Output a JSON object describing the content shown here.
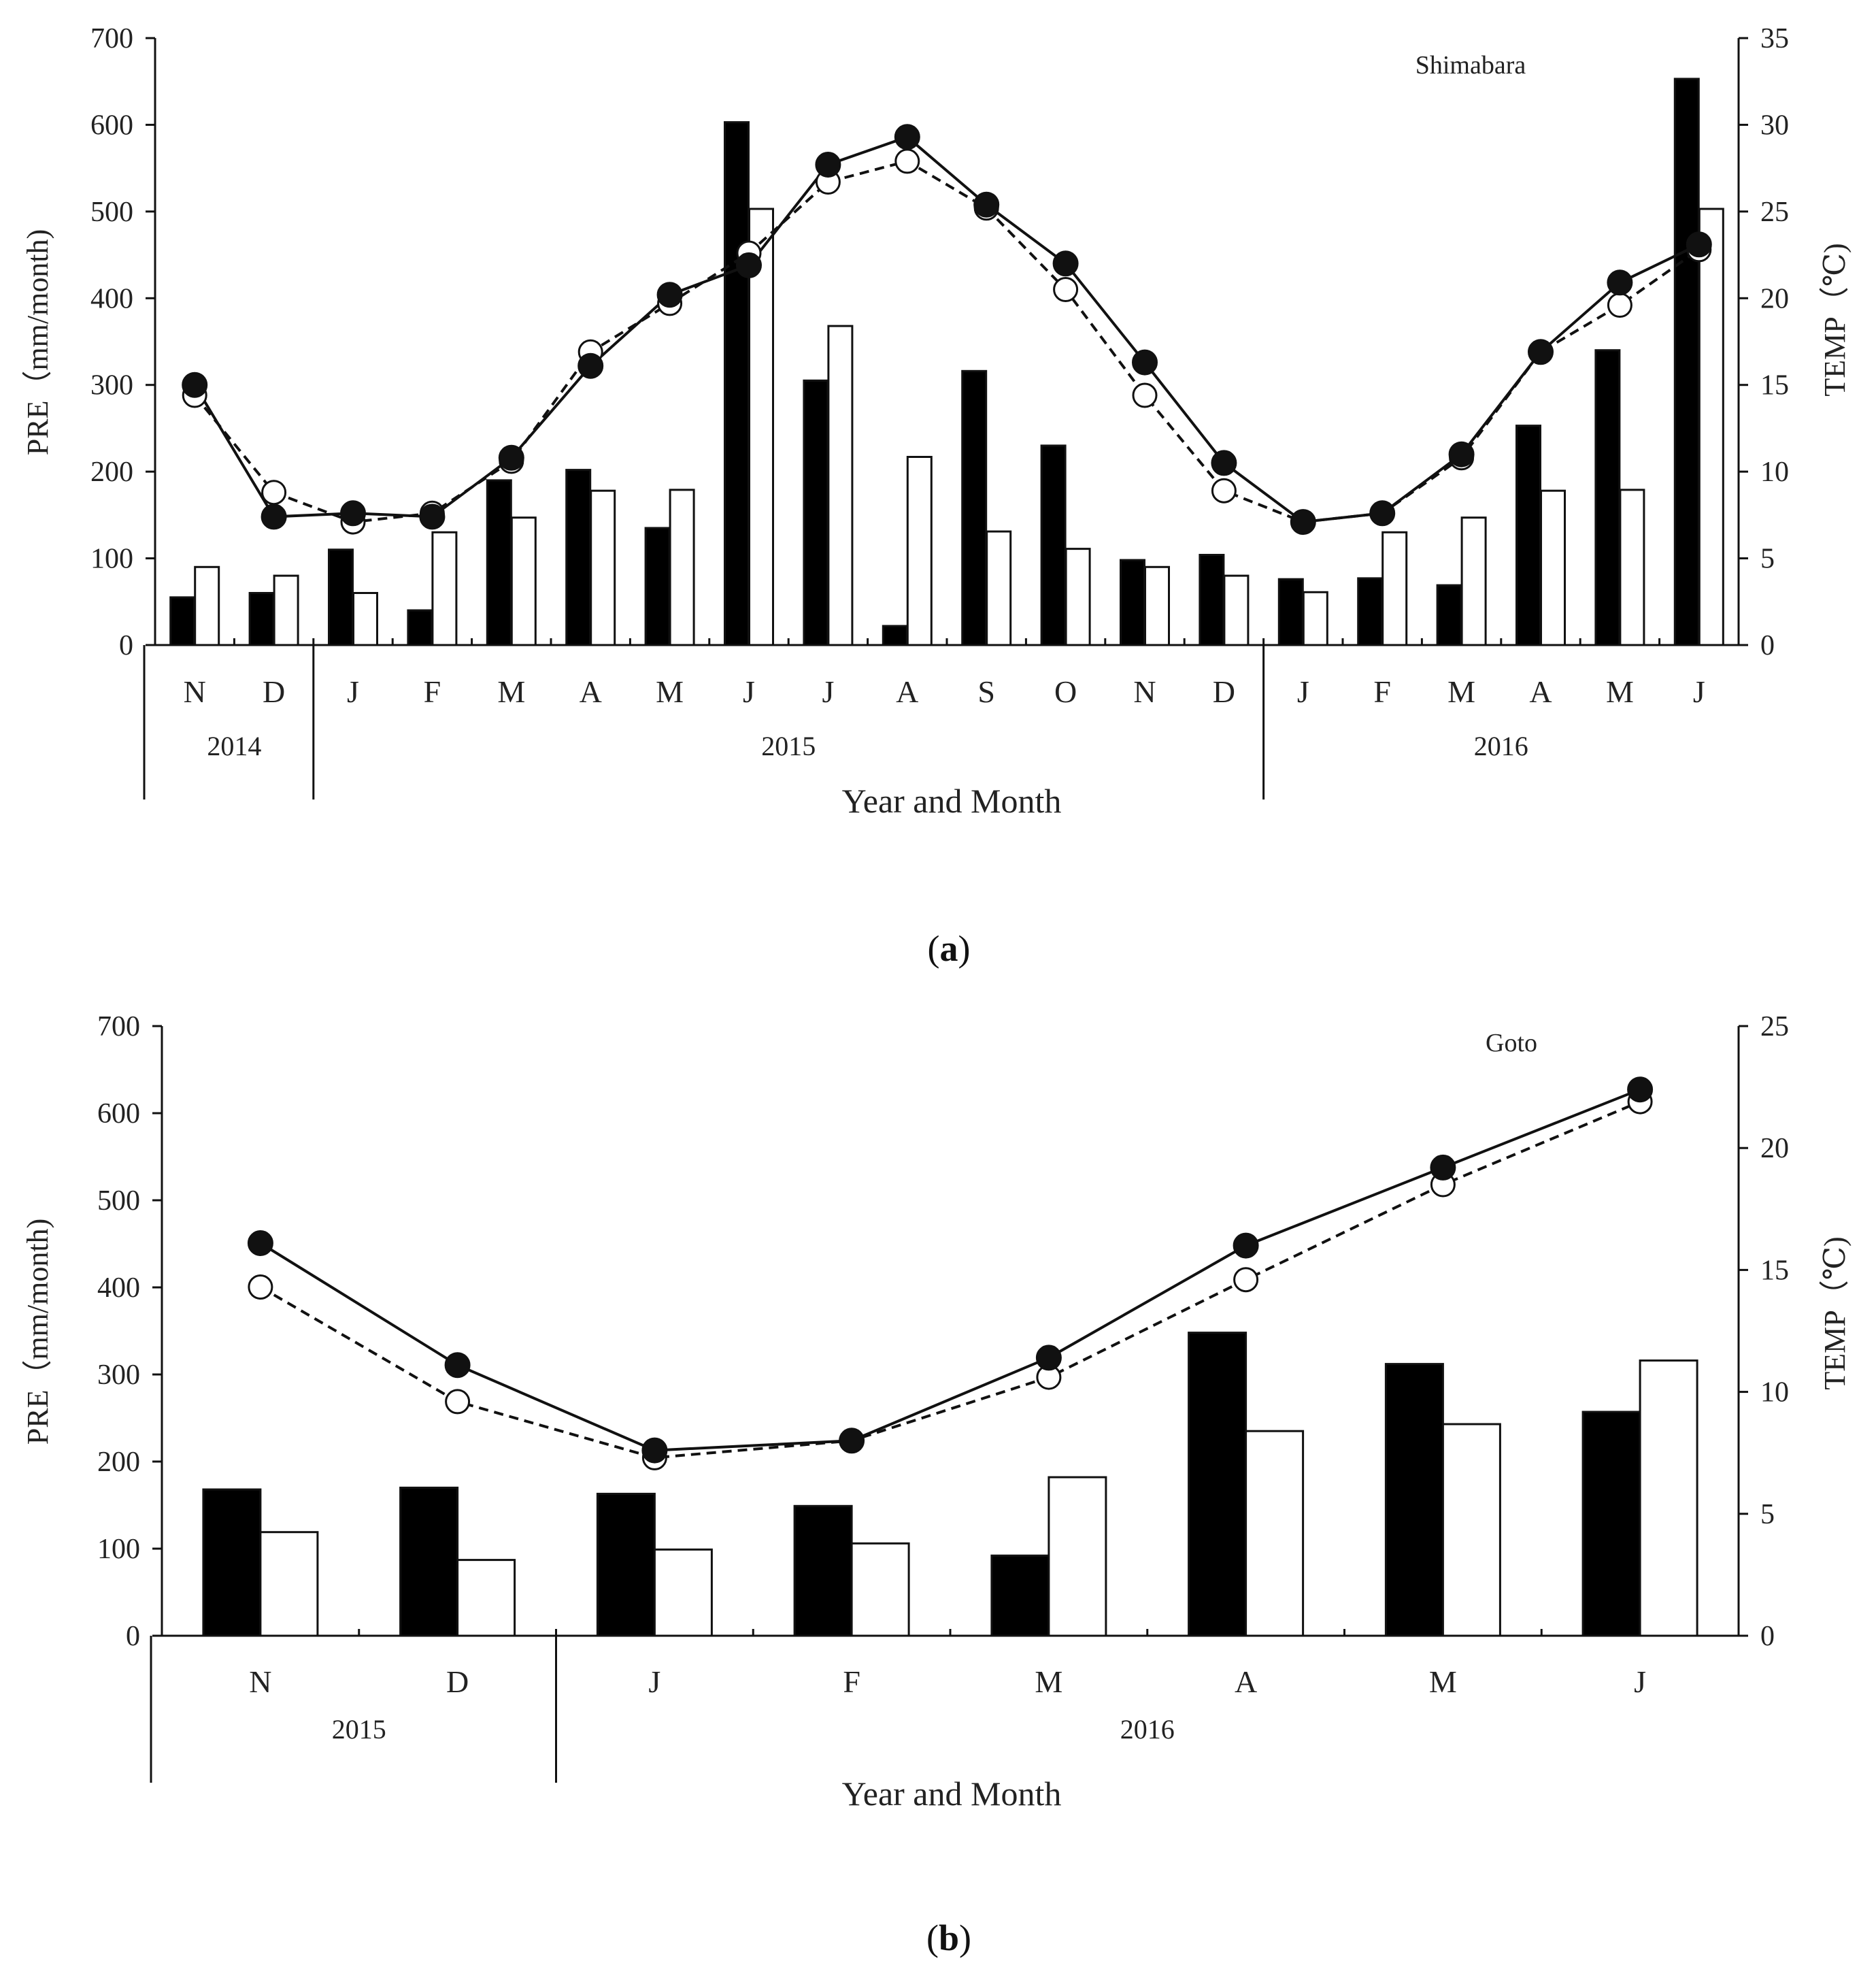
{
  "figure": {
    "colors": {
      "ink": "#111111",
      "bar_a": "#000000",
      "bar_b": "#ffffff",
      "marker_open": "#ffffff"
    }
  },
  "chart_data": [
    {
      "type": "bar+line",
      "panel_label": "a",
      "station": "Shimabara",
      "xlabel": "Year and Month",
      "ylabel_left": "PRE（mm/month)",
      "ylabel_right": "TEMP（℃)",
      "ylim_left": [
        0,
        700
      ],
      "yticks_left": [
        0,
        100,
        200,
        300,
        400,
        500,
        600,
        700
      ],
      "ylim_right": [
        0,
        35
      ],
      "yticks_right": [
        0,
        5,
        10,
        15,
        20,
        25,
        30,
        35
      ],
      "categories": [
        "N",
        "D",
        "J",
        "F",
        "M",
        "A",
        "M",
        "J",
        "J",
        "A",
        "S",
        "O",
        "N",
        "D",
        "J",
        "F",
        "M",
        "A",
        "M",
        "J"
      ],
      "year_groups": [
        {
          "label": "2014",
          "start": 0,
          "end": 1
        },
        {
          "label": "2015",
          "start": 2,
          "end": 13
        },
        {
          "label": "2016",
          "start": 14,
          "end": 19
        }
      ],
      "bar_series": [
        {
          "name": "PRE (filled)",
          "values": [
            55,
            60,
            110,
            40,
            190,
            202,
            135,
            603,
            305,
            22,
            316,
            230,
            98,
            104,
            76,
            77,
            69,
            253,
            340,
            653
          ]
        },
        {
          "name": "PRE (open)",
          "values": [
            90,
            80,
            60,
            130,
            147,
            178,
            179,
            503,
            368,
            217,
            131,
            111,
            90,
            80,
            61,
            130,
            147,
            178,
            179,
            503
          ]
        }
      ],
      "line_series": [
        {
          "name": "TEMP (filled, solid)",
          "values": [
            15.0,
            7.4,
            7.6,
            7.4,
            10.8,
            16.1,
            20.2,
            21.9,
            27.7,
            29.3,
            25.4,
            22.0,
            16.3,
            10.5,
            7.1,
            7.6,
            11.0,
            16.9,
            20.9,
            23.1
          ]
        },
        {
          "name": "TEMP (open, dashed)",
          "values": [
            14.4,
            8.8,
            7.1,
            7.6,
            10.6,
            16.9,
            19.7,
            22.6,
            26.7,
            27.9,
            25.2,
            20.5,
            14.4,
            8.9,
            7.1,
            7.6,
            10.8,
            16.9,
            19.6,
            22.8
          ]
        }
      ]
    },
    {
      "type": "bar+line",
      "panel_label": "b",
      "station": "Goto",
      "xlabel": "Year and Month",
      "ylabel_left": "PRE（mm/month)",
      "ylabel_right": "TEMP（℃)",
      "ylim_left": [
        0,
        700
      ],
      "yticks_left": [
        0,
        100,
        200,
        300,
        400,
        500,
        600,
        700
      ],
      "ylim_right": [
        0,
        25
      ],
      "yticks_right": [
        0,
        5,
        10,
        15,
        20,
        25
      ],
      "categories": [
        "N",
        "D",
        "J",
        "F",
        "M",
        "A",
        "M",
        "J"
      ],
      "year_groups": [
        {
          "label": "2015",
          "start": 0,
          "end": 1
        },
        {
          "label": "2016",
          "start": 2,
          "end": 7
        }
      ],
      "bar_series": [
        {
          "name": "PRE (filled)",
          "values": [
            168,
            170,
            163,
            149,
            92,
            348,
            312,
            257
          ]
        },
        {
          "name": "PRE (open)",
          "values": [
            119,
            87,
            99,
            106,
            182,
            235,
            243,
            316
          ]
        }
      ],
      "line_series": [
        {
          "name": "TEMP (filled, solid)",
          "values": [
            16.1,
            11.1,
            7.6,
            8.0,
            11.4,
            16.0,
            19.2,
            22.4
          ]
        },
        {
          "name": "TEMP (open, dashed)",
          "values": [
            14.3,
            9.6,
            7.3,
            8.0,
            10.6,
            14.6,
            18.5,
            21.9
          ]
        }
      ]
    }
  ]
}
